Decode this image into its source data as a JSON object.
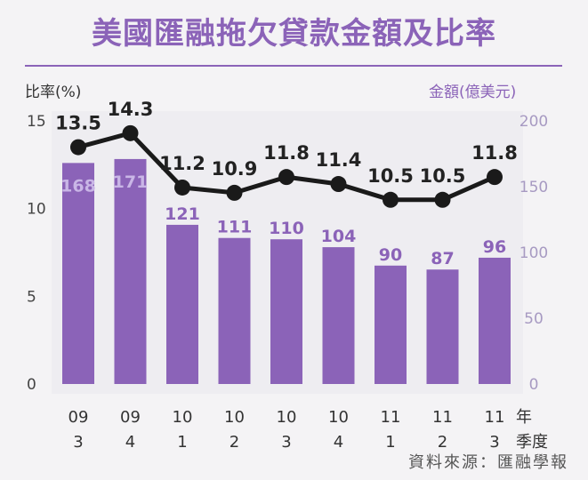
{
  "title": "美國匯融拖欠貸款金額及比率",
  "source": "資料來源：匯融學報",
  "chart_data": {
    "type": "bar",
    "categories": [
      {
        "year": "09",
        "quarter": "3"
      },
      {
        "year": "09",
        "quarter": "4"
      },
      {
        "year": "10",
        "quarter": "1"
      },
      {
        "year": "10",
        "quarter": "2"
      },
      {
        "year": "10",
        "quarter": "3"
      },
      {
        "year": "10",
        "quarter": "4"
      },
      {
        "year": "11",
        "quarter": "1"
      },
      {
        "year": "11",
        "quarter": "2"
      },
      {
        "year": "11",
        "quarter": "3"
      }
    ],
    "category_unit": [
      "年",
      "季度"
    ],
    "bars": {
      "axis": "right",
      "values": [
        168,
        171,
        121,
        111,
        110,
        104,
        90,
        87,
        96
      ],
      "labels": [
        "168",
        "171",
        "121",
        "111",
        "110",
        "104",
        "90",
        "87",
        "96"
      ],
      "color": "#8b63b8"
    },
    "line": {
      "axis": "left",
      "values": [
        13.5,
        14.3,
        11.2,
        10.9,
        11.8,
        11.4,
        10.5,
        10.5,
        11.8
      ],
      "labels": [
        "13.5",
        "14.3",
        "11.2",
        "10.9",
        "11.8",
        "11.4",
        "10.5",
        "10.5",
        "11.8"
      ],
      "color": "#1a1a1a"
    },
    "left_axis": {
      "label": "比率(%)",
      "range": [
        0,
        15
      ],
      "ticks": [
        0,
        5,
        10,
        15
      ],
      "tick_labels": [
        "0",
        "5",
        "10",
        "15"
      ]
    },
    "right_axis": {
      "label": "金額(億美元)",
      "range": [
        0,
        200
      ],
      "ticks": [
        0,
        50,
        100,
        150,
        200
      ],
      "tick_labels": [
        "0",
        "50",
        "100",
        "150",
        "200"
      ]
    },
    "grid": false,
    "legend": "none"
  }
}
